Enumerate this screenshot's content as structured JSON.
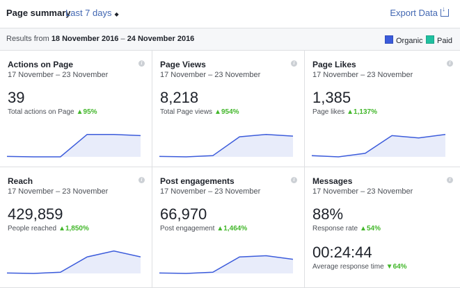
{
  "header": {
    "title": "Page summary",
    "range_label": "Last 7 days",
    "export_label": "Export Data"
  },
  "subheader": {
    "results_prefix": "Results from",
    "start": "18 November 2016",
    "dash": "–",
    "end": "24 November 2016",
    "legend": [
      {
        "label": "Organic",
        "color": "#3b5bdb"
      },
      {
        "label": "Paid",
        "color": "#20c0a0"
      }
    ]
  },
  "cards": [
    {
      "title": "Actions on Page",
      "dates": "17 November – 23 November",
      "value": "39",
      "sub": "Total actions on Page",
      "change": "95%",
      "spark": [
        0.02,
        0.0,
        0.0,
        0.95,
        0.95,
        0.9
      ]
    },
    {
      "title": "Page Views",
      "dates": "17 November – 23 November",
      "value": "8,218",
      "sub": "Total Page views",
      "change": "954%",
      "spark": [
        0.02,
        0.0,
        0.05,
        0.85,
        0.95,
        0.88
      ]
    },
    {
      "title": "Page Likes",
      "dates": "17 November – 23 November",
      "value": "1,385",
      "sub": "Page likes",
      "change": "1,137%",
      "spark": [
        0.05,
        0.0,
        0.15,
        0.9,
        0.8,
        0.95
      ]
    },
    {
      "title": "Reach",
      "dates": "17 November – 23 November",
      "value": "429,859",
      "sub": "People reached",
      "change": "1,850%",
      "spark": [
        0.02,
        0.0,
        0.05,
        0.7,
        0.95,
        0.7
      ]
    },
    {
      "title": "Post engagements",
      "dates": "17 November – 23 November",
      "value": "66,970",
      "sub": "Post engagement",
      "change": "1,464%",
      "spark": [
        0.02,
        0.0,
        0.05,
        0.7,
        0.75,
        0.6
      ]
    },
    {
      "title": "Messages",
      "dates": "17 November – 23 November",
      "value": "88%",
      "sub": "Response rate",
      "change": "54%",
      "value2": "00:24:44",
      "sub2": "Average response time",
      "change2": "64%"
    }
  ]
}
